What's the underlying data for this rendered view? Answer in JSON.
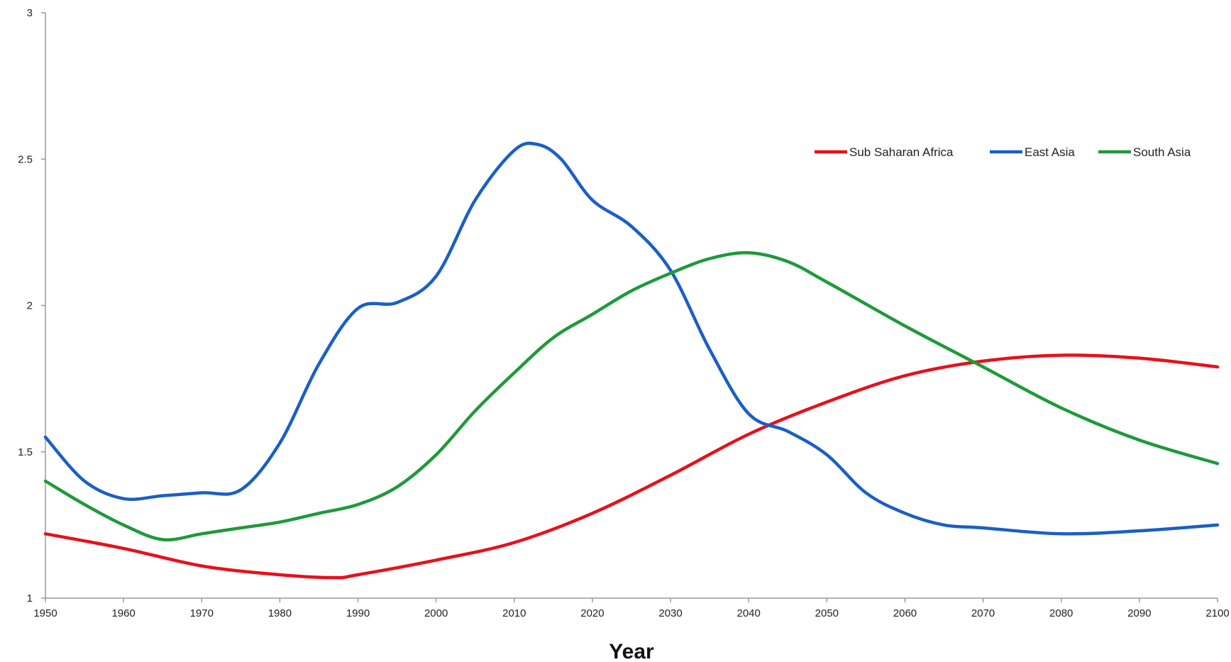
{
  "chart_data": {
    "type": "line",
    "title": "",
    "xlabel": "Year",
    "ylabel": "",
    "xlim": [
      1950,
      2100
    ],
    "ylim": [
      1,
      3
    ],
    "xticks": [
      1950,
      1960,
      1970,
      1980,
      1990,
      2000,
      2010,
      2020,
      2030,
      2040,
      2050,
      2060,
      2070,
      2080,
      2090,
      2100
    ],
    "yticks": [
      1,
      1.5,
      2,
      2.5,
      3
    ],
    "ytick_labels": [
      "1",
      "1.5",
      "2",
      "2.5",
      "3"
    ],
    "grid": false,
    "legend_position": "top-right",
    "series": [
      {
        "name": "Sub Saharan Africa",
        "color": "#e8101a",
        "x": [
          1950,
          1960,
          1970,
          1980,
          1987,
          1990,
          2000,
          2010,
          2020,
          2030,
          2040,
          2050,
          2060,
          2070,
          2080,
          2090,
          2100
        ],
        "y": [
          1.22,
          1.17,
          1.11,
          1.08,
          1.07,
          1.08,
          1.13,
          1.19,
          1.29,
          1.42,
          1.56,
          1.67,
          1.76,
          1.81,
          1.83,
          1.82,
          1.79
        ]
      },
      {
        "name": "East Asia",
        "color": "#1a5fc4",
        "x": [
          1950,
          1955,
          1960,
          1965,
          1970,
          1975,
          1980,
          1985,
          1990,
          1995,
          2000,
          2005,
          2010,
          2013,
          2016,
          2020,
          2025,
          2030,
          2035,
          2040,
          2045,
          2050,
          2055,
          2060,
          2065,
          2070,
          2080,
          2090,
          2100
        ],
        "y": [
          1.55,
          1.4,
          1.34,
          1.35,
          1.36,
          1.37,
          1.53,
          1.8,
          1.99,
          2.01,
          2.1,
          2.36,
          2.53,
          2.55,
          2.5,
          2.36,
          2.27,
          2.12,
          1.85,
          1.63,
          1.57,
          1.49,
          1.36,
          1.29,
          1.25,
          1.24,
          1.22,
          1.23,
          1.25
        ]
      },
      {
        "name": "South Asia",
        "color": "#1e9a3a",
        "x": [
          1950,
          1955,
          1960,
          1965,
          1970,
          1975,
          1980,
          1985,
          1990,
          1995,
          2000,
          2005,
          2010,
          2015,
          2020,
          2025,
          2030,
          2035,
          2040,
          2045,
          2050,
          2060,
          2070,
          2080,
          2090,
          2100
        ],
        "y": [
          1.4,
          1.32,
          1.25,
          1.2,
          1.22,
          1.24,
          1.26,
          1.29,
          1.32,
          1.38,
          1.49,
          1.64,
          1.77,
          1.89,
          1.97,
          2.05,
          2.11,
          2.16,
          2.18,
          2.15,
          2.08,
          1.93,
          1.79,
          1.65,
          1.54,
          1.46
        ]
      }
    ]
  }
}
